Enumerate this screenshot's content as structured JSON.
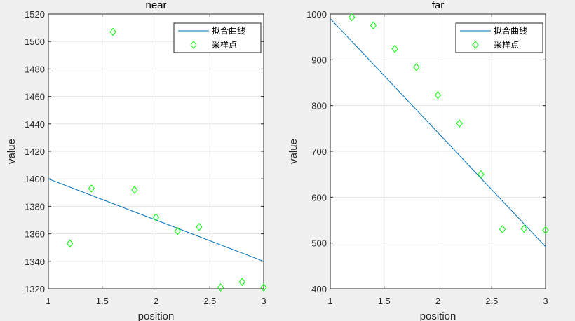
{
  "chart_data": [
    {
      "type": "line",
      "title": "near",
      "xlabel": "position",
      "ylabel": "value",
      "xlim": [
        1,
        3
      ],
      "ylim": [
        1320,
        1520
      ],
      "xticks": [
        1,
        1.5,
        2,
        2.5,
        3
      ],
      "xtick_labels": [
        "1",
        "1.5",
        "2",
        "2.5",
        "3"
      ],
      "yticks": [
        1320,
        1340,
        1360,
        1380,
        1400,
        1420,
        1440,
        1460,
        1480,
        1500,
        1520
      ],
      "ytick_labels": [
        "1320",
        "1340",
        "1360",
        "1380",
        "1400",
        "1420",
        "1440",
        "1460",
        "1480",
        "1500",
        "1520"
      ],
      "grid": true,
      "legend_position": "top-right",
      "series": [
        {
          "name": "拟合曲线",
          "kind": "line",
          "color": "#0072bd",
          "x": [
            1,
            3
          ],
          "y": [
            1400,
            1340
          ]
        },
        {
          "name": "采样点",
          "kind": "scatter",
          "marker": "diamond",
          "color": "#00ff00",
          "x": [
            1.2,
            1.4,
            1.6,
            1.8,
            2.0,
            2.2,
            2.4,
            2.6,
            2.8,
            3.0
          ],
          "y": [
            1353,
            1393,
            1507,
            1392,
            1372,
            1362,
            1365,
            1321,
            1325,
            1321
          ]
        }
      ]
    },
    {
      "type": "line",
      "title": "far",
      "xlabel": "position",
      "ylabel": "value",
      "xlim": [
        1,
        3
      ],
      "ylim": [
        400,
        1000
      ],
      "xticks": [
        1,
        1.5,
        2,
        2.5,
        3
      ],
      "xtick_labels": [
        "1",
        "1.5",
        "2",
        "2.5",
        "3"
      ],
      "yticks": [
        400,
        500,
        600,
        700,
        800,
        900,
        1000
      ],
      "ytick_labels": [
        "400",
        "500",
        "600",
        "700",
        "800",
        "900",
        "1000"
      ],
      "grid": true,
      "legend_position": "top-right",
      "series": [
        {
          "name": "拟合曲线",
          "kind": "line",
          "color": "#0072bd",
          "x": [
            1,
            3
          ],
          "y": [
            990,
            492
          ]
        },
        {
          "name": "采样点",
          "kind": "scatter",
          "marker": "diamond",
          "color": "#00ff00",
          "x": [
            1.2,
            1.4,
            1.6,
            1.8,
            2.0,
            2.2,
            2.4,
            2.6,
            2.8,
            3.0
          ],
          "y": [
            993,
            975,
            924,
            884,
            823,
            761,
            650,
            530,
            531,
            528
          ]
        }
      ]
    }
  ]
}
